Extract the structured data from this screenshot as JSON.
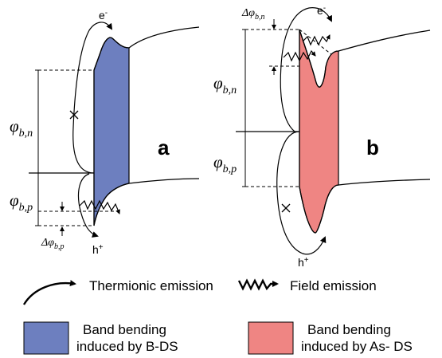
{
  "panels": {
    "a": {
      "letter": "a",
      "phi_n_label": "φ",
      "phi_n_sub": "b,n",
      "phi_p_label": "φ",
      "phi_p_sub": "b,p",
      "delta_label": "Δφ",
      "delta_sub": "b,p",
      "electron_label": "e",
      "electron_sup": "-",
      "hole_label": "h",
      "hole_sup": "+"
    },
    "b": {
      "letter": "b",
      "phi_n_label": "φ",
      "phi_n_sub": "b,n",
      "phi_p_label": "φ",
      "phi_p_sub": "b,p",
      "delta_label": "Δφ",
      "delta_sub": "b,n",
      "electron_label": "e",
      "electron_sup": "-",
      "hole_label": "h",
      "hole_sup": "+"
    }
  },
  "legend": {
    "thermionic": "Thermionic emission",
    "field": "Field emission",
    "band_b_line1": "Band bending",
    "band_b_line2": "induced by B-DS",
    "band_as_line1": "Band bending",
    "band_as_line2": "induced by As- DS"
  },
  "colors": {
    "blue_fill": "#6d7fbf",
    "red_fill": "#ef8583",
    "line": "#000000"
  }
}
